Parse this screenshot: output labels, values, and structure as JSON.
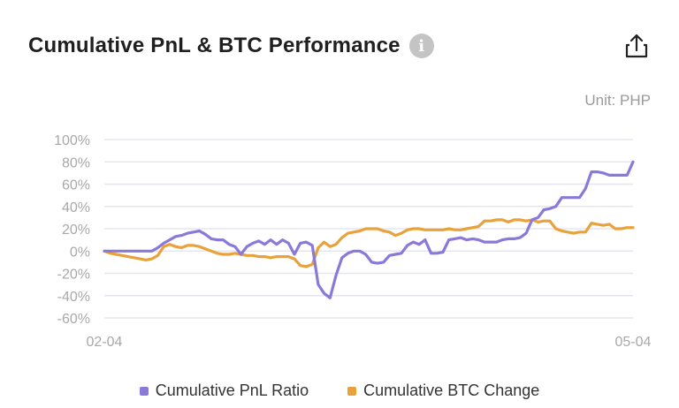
{
  "header": {
    "title": "Cumulative PnL & BTC Performance",
    "info_glyph": "i"
  },
  "unit_label": "Unit: PHP",
  "colors": {
    "pnl": "#8b79d9",
    "btc": "#e9a23b",
    "grid": "#e6e6ee",
    "axis_text": "#a8a8a8"
  },
  "icons": {
    "info": "info-icon",
    "share": "share-icon"
  },
  "chart_data": {
    "type": "line",
    "title": "Cumulative PnL & BTC Performance",
    "xlabel": "",
    "ylabel": "",
    "ylim": [
      -60,
      100
    ],
    "y_ticks": [
      100,
      80,
      60,
      40,
      20,
      0,
      -20,
      -40,
      -60
    ],
    "y_tick_labels": [
      "100%",
      "80%",
      "60%",
      "40%",
      "20%",
      "0%",
      "-20%",
      "-40%",
      "-60%"
    ],
    "x_tick_labels": [
      "02-04",
      "05-04"
    ],
    "x_range": [
      "02-04",
      "05-04"
    ],
    "grid": true,
    "legend_position": "bottom",
    "x": [
      0,
      1,
      2,
      3,
      4,
      5,
      6,
      7,
      8,
      9,
      10,
      11,
      12,
      13,
      14,
      15,
      16,
      17,
      18,
      19,
      20,
      21,
      22,
      23,
      24,
      25,
      26,
      27,
      28,
      29,
      30,
      31,
      32,
      33,
      34,
      35,
      36,
      37,
      38,
      39,
      40,
      41,
      42,
      43,
      44,
      45,
      46,
      47,
      48,
      49,
      50,
      51,
      52,
      53,
      54,
      55,
      56,
      57,
      58,
      59,
      60,
      61,
      62,
      63,
      64,
      65,
      66,
      67,
      68,
      69,
      70,
      71,
      72,
      73,
      74,
      75,
      76,
      77,
      78,
      79,
      80,
      81,
      82,
      83,
      84,
      85,
      86,
      87,
      88,
      89
    ],
    "series": [
      {
        "name": "Cumulative PnL Ratio",
        "values": [
          0,
          0,
          0,
          0,
          0,
          0,
          0,
          0,
          0,
          3,
          7,
          10,
          13,
          14,
          16,
          17,
          18,
          15,
          11,
          10,
          10,
          6,
          4,
          -3,
          4,
          7,
          9,
          6,
          10,
          6,
          10,
          7,
          -3,
          7,
          8,
          5,
          -30,
          -38,
          -42,
          -22,
          -6,
          -2,
          0,
          0,
          -3,
          -10,
          -11,
          -10,
          -4,
          -3,
          -2,
          5,
          8,
          6,
          10,
          -2,
          -2,
          -1,
          10,
          11,
          12,
          10,
          11,
          10,
          8,
          8,
          8,
          10,
          11,
          11,
          12,
          16,
          28,
          30,
          37,
          38,
          40,
          48,
          48,
          48,
          48,
          56,
          71,
          71,
          70,
          68,
          68,
          68,
          68,
          80
        ]
      },
      {
        "name": "Cumulative BTC Change",
        "values": [
          0,
          -2,
          -3,
          -4,
          -5,
          -6,
          -7,
          -8,
          -7,
          -4,
          4,
          6,
          4,
          3,
          5,
          5,
          4,
          2,
          0,
          -2,
          -3,
          -3,
          -2,
          -3,
          -4,
          -4,
          -5,
          -5,
          -6,
          -5,
          -5,
          -5,
          -7,
          -13,
          -14,
          -12,
          3,
          8,
          4,
          6,
          12,
          16,
          17,
          18,
          20,
          20,
          20,
          18,
          17,
          14,
          16,
          19,
          20,
          20,
          19,
          19,
          19,
          19,
          20,
          19,
          19,
          20,
          21,
          22,
          27,
          27,
          28,
          28,
          26,
          28,
          28,
          27,
          28,
          26,
          27,
          27,
          20,
          18,
          17,
          16,
          17,
          17,
          25,
          24,
          23,
          24,
          20,
          20,
          21,
          21
        ]
      }
    ]
  }
}
